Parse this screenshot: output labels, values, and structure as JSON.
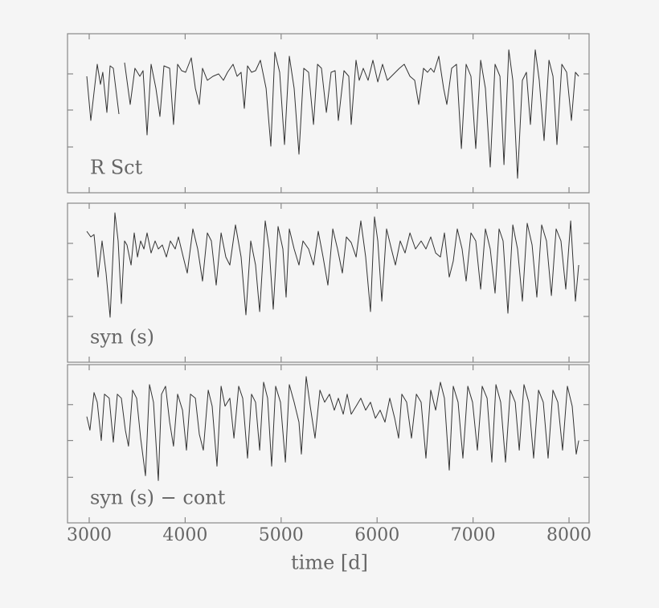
{
  "chart_data": [
    {
      "type": "line",
      "label": "R Sct",
      "color": "#333333",
      "xlim": [
        2774,
        8209
      ],
      "xticks": [
        3000,
        4000,
        5000,
        6000,
        7000,
        8000
      ],
      "ylim": [
        0,
        198
      ],
      "yticks": [
        57,
        103,
        148
      ],
      "x": [
        2975,
        3017,
        3084,
        3117,
        3142,
        3184,
        3218,
        3251,
        3310,
        3340,
        3369,
        3427,
        3477,
        3528,
        3561,
        3603,
        3645,
        3695,
        3737,
        3779,
        3838,
        3879,
        3921,
        3963,
        4005,
        4064,
        4106,
        4147,
        4181,
        4231,
        4290,
        4348,
        4399,
        4441,
        4499,
        4541,
        4583,
        4616,
        4650,
        4692,
        4734,
        4784,
        4843,
        4893,
        4935,
        4985,
        5035,
        5085,
        5136,
        5186,
        5236,
        5286,
        5337,
        5379,
        5420,
        5471,
        5521,
        5563,
        5596,
        5655,
        5705,
        5730,
        5780,
        5814,
        5856,
        5906,
        5956,
        6007,
        6057,
        6107,
        6174,
        6233,
        6283,
        6342,
        6392,
        6434,
        6484,
        6526,
        6559,
        6593,
        6643,
        6693,
        6727,
        6777,
        6827,
        6878,
        6928,
        6978,
        7028,
        7079,
        7129,
        7179,
        7229,
        7280,
        7322,
        7372,
        7414,
        7464,
        7514,
        7556,
        7598,
        7648,
        7690,
        7740,
        7791,
        7833,
        7874,
        7925,
        7975,
        8025,
        8067,
        8101
      ],
      "values": [
        145,
        90,
        160,
        135,
        150,
        100,
        158,
        155,
        98,
        null,
        162,
        110,
        155,
        145,
        152,
        72,
        160,
        130,
        95,
        158,
        155,
        85,
        160,
        152,
        150,
        168,
        130,
        110,
        155,
        140,
        145,
        148,
        140,
        150,
        160,
        145,
        150,
        105,
        158,
        150,
        152,
        165,
        130,
        58,
        175,
        150,
        60,
        170,
        130,
        48,
        155,
        150,
        85,
        160,
        155,
        100,
        150,
        152,
        90,
        152,
        145,
        85,
        165,
        140,
        155,
        140,
        165,
        138,
        160,
        140,
        148,
        155,
        160,
        145,
        140,
        110,
        155,
        150,
        155,
        150,
        170,
        130,
        110,
        155,
        160,
        55,
        160,
        145,
        55,
        165,
        130,
        32,
        160,
        145,
        35,
        178,
        140,
        18,
        140,
        150,
        85,
        178,
        140,
        65,
        165,
        145,
        60,
        160,
        150,
        90,
        150,
        145
      ]
    },
    {
      "type": "line",
      "label": "syn (s)",
      "color": "#333333",
      "xlim": [
        2774,
        8209
      ],
      "xticks": [
        3000,
        4000,
        5000,
        6000,
        7000,
        8000
      ],
      "ylim": [
        0,
        198
      ],
      "yticks": [
        57,
        103,
        148
      ],
      "x": [
        2975,
        3017,
        3050,
        3092,
        3134,
        3176,
        3218,
        3243,
        3268,
        3302,
        3335,
        3369,
        3394,
        3436,
        3469,
        3503,
        3536,
        3570,
        3603,
        3645,
        3687,
        3720,
        3762,
        3804,
        3846,
        3896,
        3930,
        3980,
        4022,
        4080,
        4131,
        4181,
        4231,
        4273,
        4323,
        4374,
        4424,
        4466,
        4524,
        4583,
        4633,
        4683,
        4734,
        4776,
        4834,
        4876,
        4918,
        4968,
        5018,
        5052,
        5085,
        5136,
        5186,
        5228,
        5286,
        5337,
        5387,
        5437,
        5487,
        5538,
        5588,
        5638,
        5680,
        5730,
        5781,
        5831,
        5881,
        5931,
        5973,
        6007,
        6049,
        6099,
        6149,
        6191,
        6241,
        6291,
        6342,
        6400,
        6459,
        6509,
        6559,
        6610,
        6660,
        6702,
        6752,
        6794,
        6836,
        6886,
        6928,
        6978,
        7028,
        7079,
        7129,
        7179,
        7229,
        7271,
        7313,
        7363,
        7414,
        7464,
        7514,
        7564,
        7615,
        7665,
        7715,
        7765,
        7816,
        7866,
        7916,
        7966,
        8017,
        8067,
        8101
      ],
      "values": [
        163,
        156,
        159,
        106,
        151,
        111,
        56,
        121,
        186,
        151,
        73,
        151,
        146,
        121,
        161,
        131,
        151,
        141,
        161,
        136,
        151,
        141,
        146,
        131,
        151,
        141,
        156,
        131,
        111,
        166,
        141,
        101,
        161,
        151,
        96,
        161,
        131,
        121,
        171,
        131,
        59,
        151,
        121,
        63,
        176,
        141,
        66,
        169,
        141,
        81,
        166,
        141,
        121,
        151,
        141,
        121,
        163,
        131,
        96,
        166,
        141,
        111,
        156,
        149,
        131,
        176,
        131,
        63,
        181,
        151,
        76,
        166,
        141,
        121,
        151,
        136,
        161,
        141,
        151,
        141,
        156,
        136,
        131,
        161,
        106,
        126,
        166,
        141,
        101,
        161,
        151,
        91,
        166,
        141,
        86,
        166,
        151,
        61,
        171,
        141,
        76,
        173,
        146,
        81,
        171,
        151,
        83,
        166,
        151,
        91,
        176,
        76,
        121
      ]
    },
    {
      "type": "line",
      "label": "syn (s) − cont",
      "color": "#333333",
      "xlabel": "time [d]",
      "xlim": [
        2774,
        8209
      ],
      "xticks": [
        3000,
        4000,
        5000,
        6000,
        7000,
        8000
      ],
      "ylim": [
        0,
        198
      ],
      "yticks": [
        57,
        103,
        148
      ],
      "x": [
        2975,
        3008,
        3050,
        3084,
        3126,
        3159,
        3209,
        3251,
        3293,
        3335,
        3377,
        3410,
        3452,
        3494,
        3536,
        3586,
        3628,
        3670,
        3720,
        3754,
        3796,
        3838,
        3879,
        3921,
        3972,
        4013,
        4055,
        4106,
        4147,
        4189,
        4240,
        4281,
        4332,
        4374,
        4415,
        4466,
        4508,
        4558,
        4600,
        4650,
        4692,
        4734,
        4776,
        4817,
        4859,
        4901,
        4943,
        4993,
        5044,
        5085,
        5136,
        5186,
        5211,
        5261,
        5303,
        5353,
        5404,
        5454,
        5504,
        5554,
        5596,
        5647,
        5688,
        5730,
        5781,
        5831,
        5881,
        5931,
        5982,
        6032,
        6082,
        6132,
        6183,
        6224,
        6258,
        6308,
        6358,
        6409,
        6459,
        6509,
        6559,
        6610,
        6660,
        6702,
        6752,
        6794,
        6844,
        6894,
        6945,
        6995,
        7045,
        7095,
        7146,
        7196,
        7238,
        7288,
        7338,
        7388,
        7439,
        7481,
        7531,
        7581,
        7631,
        7682,
        7732,
        7782,
        7832,
        7883,
        7933,
        7983,
        8033,
        8075,
        8101
      ],
      "values": [
        133,
        116,
        163,
        151,
        103,
        161,
        156,
        101,
        161,
        156,
        116,
        96,
        166,
        156,
        106,
        59,
        173,
        151,
        53,
        161,
        171,
        126,
        96,
        161,
        141,
        91,
        161,
        156,
        111,
        91,
        166,
        146,
        71,
        171,
        146,
        156,
        106,
        171,
        156,
        81,
        161,
        151,
        91,
        176,
        156,
        71,
        171,
        151,
        76,
        173,
        151,
        126,
        86,
        183,
        146,
        106,
        166,
        151,
        161,
        141,
        156,
        136,
        161,
        136,
        146,
        156,
        141,
        151,
        131,
        141,
        126,
        156,
        131,
        106,
        161,
        151,
        106,
        161,
        151,
        81,
        166,
        141,
        176,
        156,
        66,
        171,
        151,
        81,
        171,
        151,
        91,
        171,
        156,
        76,
        173,
        151,
        76,
        166,
        151,
        91,
        173,
        151,
        81,
        166,
        151,
        81,
        166,
        151,
        91,
        171,
        146,
        86,
        103
      ]
    }
  ]
}
